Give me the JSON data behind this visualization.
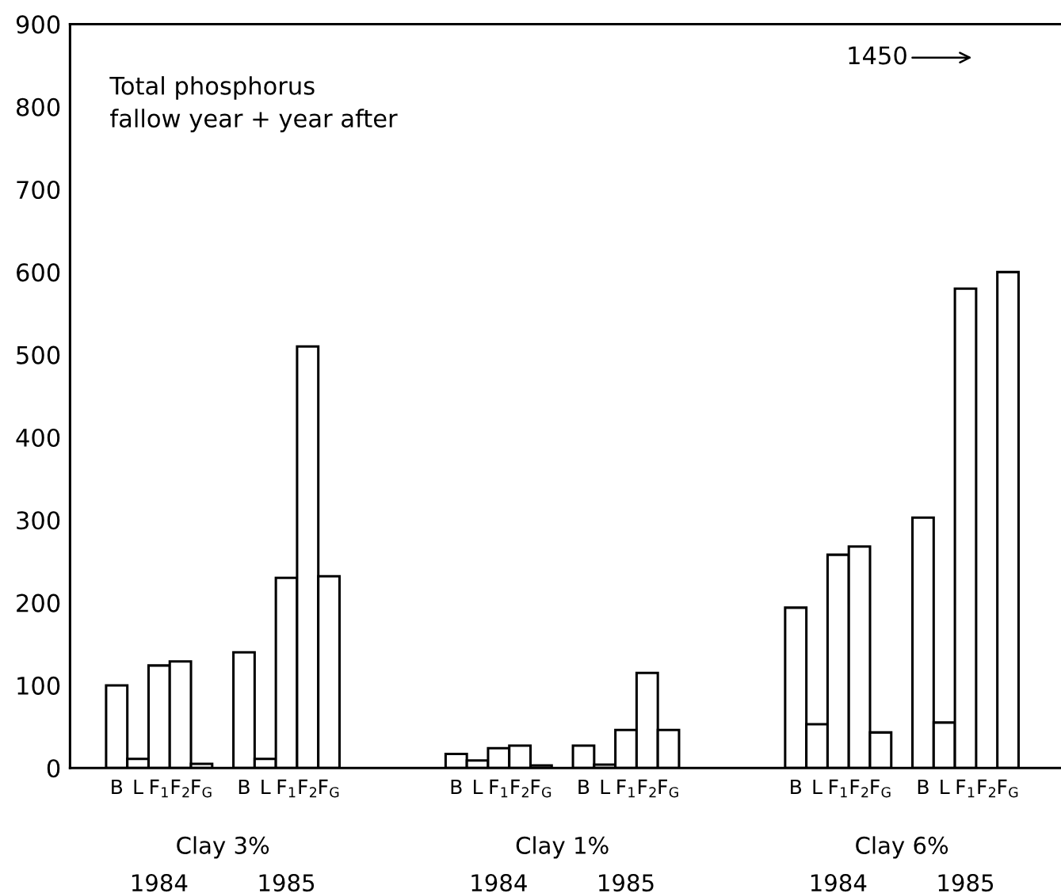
{
  "chart_data": {
    "type": "bar",
    "title": "Total phosphorus\nfallow year + year after",
    "categories": [
      "B",
      "L",
      "F$_{1}$",
      "F$_{2}$",
      "F$_{G}$",
      null,
      "B",
      "L",
      "F$_{1}$",
      "F$_{2}$",
      "F$_{G}$",
      null,
      null,
      null,
      null,
      null,
      "B",
      "L",
      "F$_{1}$",
      "F$_{2}$",
      "F$_{G}$",
      null,
      "B",
      "L",
      "F$_{1}$",
      "F$_{2}$",
      "F$_{G}$",
      null,
      null,
      null,
      null,
      null,
      "B",
      "L",
      "F$_{1}$",
      "F$_{2}$",
      "F$_{G}$",
      null,
      "B",
      "L",
      "F$_{1}$",
      "F$_{2}$",
      "F$_{G}$"
    ],
    "values": [
      100,
      11,
      124,
      129,
      5,
      null,
      140,
      11,
      230,
      510,
      232,
      null,
      null,
      null,
      null,
      null,
      17,
      9,
      24,
      27,
      3,
      null,
      27,
      4,
      46,
      115,
      46,
      null,
      null,
      null,
      null,
      null,
      194,
      53,
      258,
      268,
      43,
      null,
      303,
      55,
      580,
      null,
      600
    ],
    "color": "#ffffff",
    "ylim": [
      0,
      900
    ],
    "yticks": [
      0,
      100,
      200,
      300,
      400,
      500,
      600,
      700,
      800,
      900
    ],
    "grid": false,
    "annotations": [
      "Clay 3%",
      "1984",
      "1985",
      "Clay 1%",
      "1984",
      "1985",
      "Clay 6%",
      "1984",
      "1985",
      "1450"
    ]
  }
}
